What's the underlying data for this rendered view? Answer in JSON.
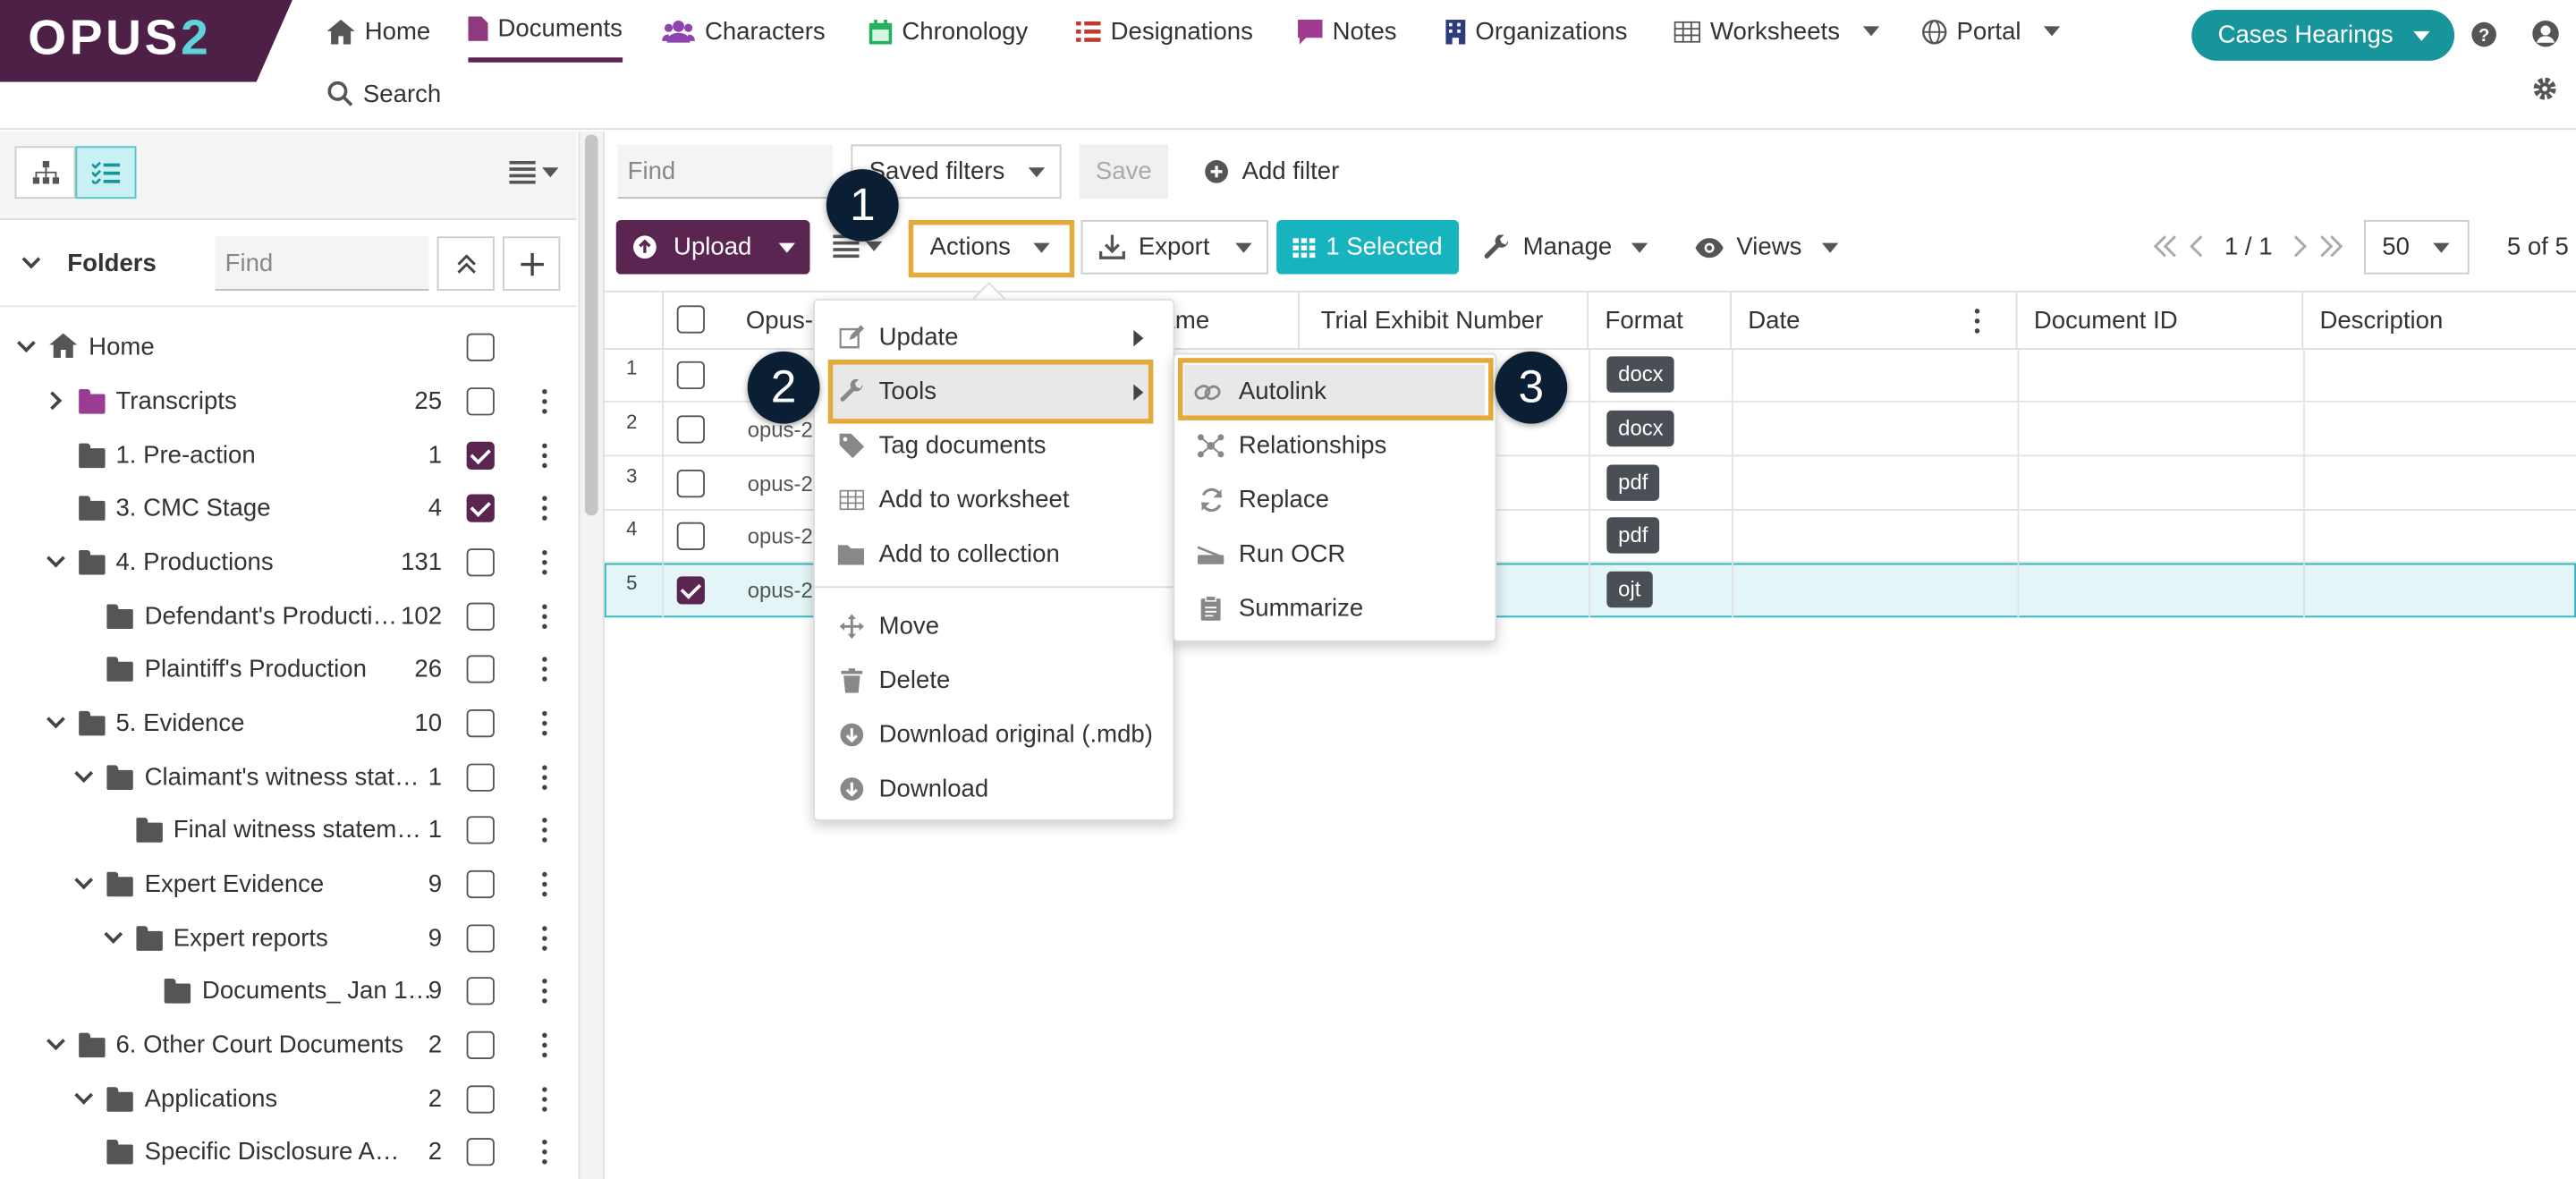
{
  "brand": {
    "logo_main": "OPUS",
    "logo_accent": "2"
  },
  "nav": {
    "items": [
      "Home",
      "Documents",
      "Characters",
      "Chronology",
      "Designations",
      "Notes",
      "Organizations",
      "Worksheets",
      "Portal"
    ],
    "search": "Search",
    "case_button": "Cases Hearings",
    "colors": {
      "characters": "#8e44ad",
      "chronology": "#27ae60",
      "designations": "#c0392b",
      "notes": "#a03b8f",
      "organizations": "#2c3e7a"
    }
  },
  "left_panel": {
    "folders_label": "Folders",
    "find_placeholder": "Find",
    "tree": [
      {
        "label": "Home",
        "count": "",
        "checked": false
      },
      {
        "label": "Transcripts",
        "count": "25",
        "checked": false
      },
      {
        "label": "1. Pre-action",
        "count": "1",
        "checked": true
      },
      {
        "label": "3. CMC Stage",
        "count": "4",
        "checked": true
      },
      {
        "label": "4. Productions",
        "count": "131",
        "checked": false
      },
      {
        "label": "Defendant's Producti…",
        "count": "102",
        "checked": false
      },
      {
        "label": "Plaintiff's Production",
        "count": "26",
        "checked": false
      },
      {
        "label": "5. Evidence",
        "count": "10",
        "checked": false
      },
      {
        "label": "Claimant's witness stat…",
        "count": "1",
        "checked": false
      },
      {
        "label": "Final witness statem…",
        "count": "1",
        "checked": false
      },
      {
        "label": "Expert Evidence",
        "count": "9",
        "checked": false
      },
      {
        "label": "Expert reports",
        "count": "9",
        "checked": false
      },
      {
        "label": "Documents_ Jan 1…",
        "count": "9",
        "checked": false
      },
      {
        "label": "6. Other Court Documents",
        "count": "2",
        "checked": false
      },
      {
        "label": "Applications",
        "count": "2",
        "checked": false
      },
      {
        "label": "Specific Disclosure A…",
        "count": "2",
        "checked": false
      }
    ]
  },
  "toolbar": {
    "find_placeholder": "Find",
    "saved_filters": "Saved filters",
    "save": "Save",
    "add_filter": "Add filter",
    "upload": "Upload",
    "actions": "Actions",
    "export": "Export",
    "selected": "1 Selected",
    "manage": "Manage",
    "views": "Views",
    "page": "1 / 1",
    "per_page": "50",
    "count": "5 of 5",
    "accent_color": "#17b4c0",
    "brand_color": "#5a2551",
    "highlight_color": "#e3aa3c"
  },
  "table": {
    "headers": [
      "Opus-",
      "ame",
      "Trial Exhibit Number",
      "Format",
      "Date",
      "Document ID",
      "Description"
    ],
    "rows": [
      {
        "num": "1",
        "id": "",
        "format": "docx",
        "checked": false
      },
      {
        "num": "2",
        "id": "opus-2",
        "format": "docx",
        "checked": false
      },
      {
        "num": "3",
        "id": "opus-2",
        "format": "pdf",
        "checked": false
      },
      {
        "num": "4",
        "id": "opus-2",
        "format": "pdf",
        "checked": false
      },
      {
        "num": "5",
        "id": "opus-2",
        "format": "ojt",
        "checked": true
      }
    ]
  },
  "actions_menu": {
    "items": [
      "Update",
      "Tools",
      "Tag documents",
      "Add to worksheet",
      "Add to collection",
      "Move",
      "Delete",
      "Download original (.mdb)",
      "Download"
    ]
  },
  "tools_menu": {
    "items": [
      "Autolink",
      "Relationships",
      "Replace",
      "Run OCR",
      "Summarize"
    ]
  },
  "steps": [
    "1",
    "2",
    "3"
  ]
}
